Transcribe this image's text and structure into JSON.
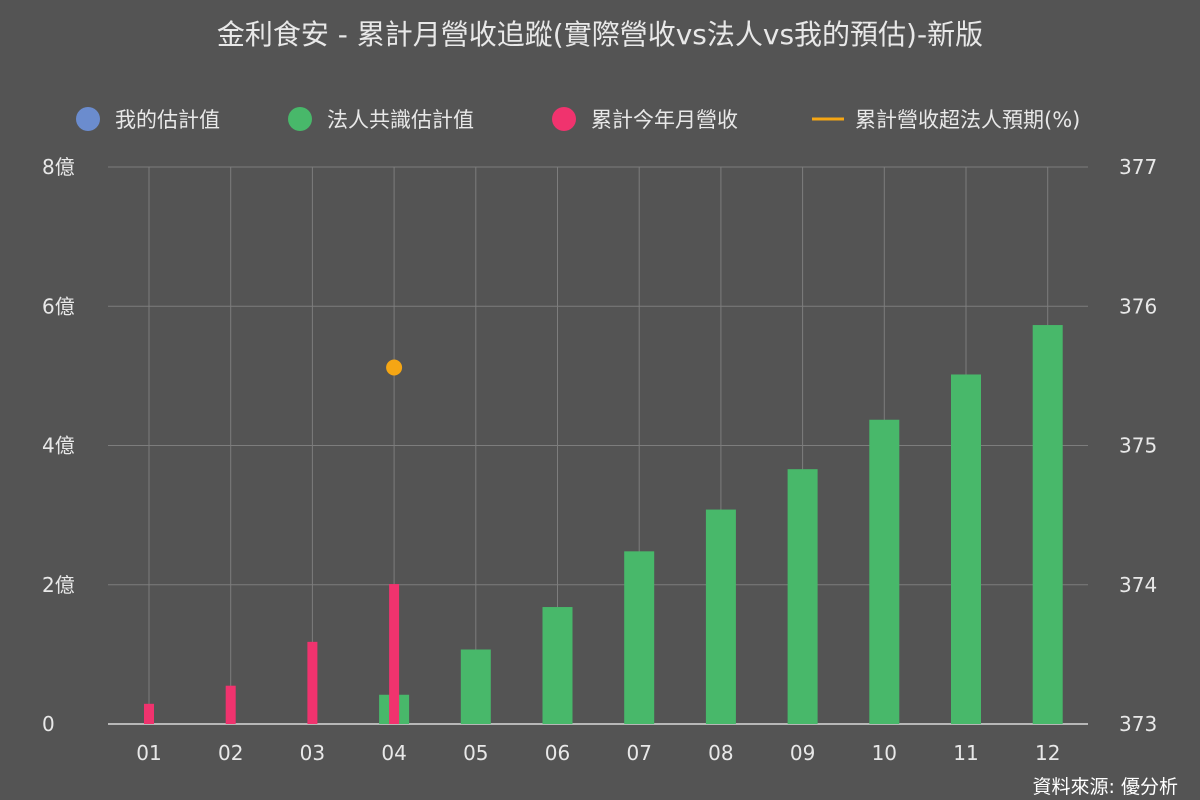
{
  "chart_data": {
    "type": "bar",
    "title": "金利食安 - 累計月營收追蹤(實際營收vs法人vs我的預估)-新版",
    "source": "資料來源: 優分析",
    "categories": [
      "01",
      "02",
      "03",
      "04",
      "05",
      "06",
      "07",
      "08",
      "09",
      "10",
      "11",
      "12"
    ],
    "legend": {
      "placement": "top",
      "items": [
        {
          "label": "我的估計值",
          "color": "#6b8cce",
          "marker": "circle"
        },
        {
          "label": "法人共識估計值",
          "color": "#48b86a",
          "marker": "circle"
        },
        {
          "label": "累計今年月營收",
          "color": "#f0336e",
          "marker": "circle"
        },
        {
          "label": "累計營收超法人預期(%)",
          "color": "#f5a614",
          "marker": "line"
        }
      ]
    },
    "y_left": {
      "min": 0,
      "max": 8,
      "ticks": [
        {
          "value": 0,
          "label": "0"
        },
        {
          "value": 2,
          "label": "2億"
        },
        {
          "value": 4,
          "label": "4億"
        },
        {
          "value": 6,
          "label": "6億"
        },
        {
          "value": 8,
          "label": "8億"
        }
      ]
    },
    "y_right": {
      "min": 373,
      "max": 377,
      "ticks": [
        {
          "value": 373,
          "label": "373"
        },
        {
          "value": 374,
          "label": "374"
        },
        {
          "value": 375,
          "label": "375"
        },
        {
          "value": 376,
          "label": "376"
        },
        {
          "value": 377,
          "label": "377"
        }
      ]
    },
    "grid": true,
    "series": [
      {
        "name": "法人共識估計值",
        "kind": "bar",
        "axis": "left",
        "color": "#48b86a",
        "values": [
          null,
          null,
          null,
          0.42,
          1.07,
          1.68,
          2.48,
          3.08,
          3.66,
          4.37,
          5.02,
          5.73
        ]
      },
      {
        "name": "累計今年月營收",
        "kind": "bar",
        "axis": "left",
        "color": "#f0336e",
        "values": [
          0.29,
          0.55,
          1.18,
          2.01,
          null,
          null,
          null,
          null,
          null,
          null,
          null,
          null
        ]
      },
      {
        "name": "累計營收超法人預期(%)",
        "kind": "point",
        "axis": "right",
        "color": "#f5a614",
        "values": [
          null,
          null,
          null,
          375.56,
          null,
          null,
          null,
          null,
          null,
          null,
          null,
          null
        ]
      }
    ]
  }
}
